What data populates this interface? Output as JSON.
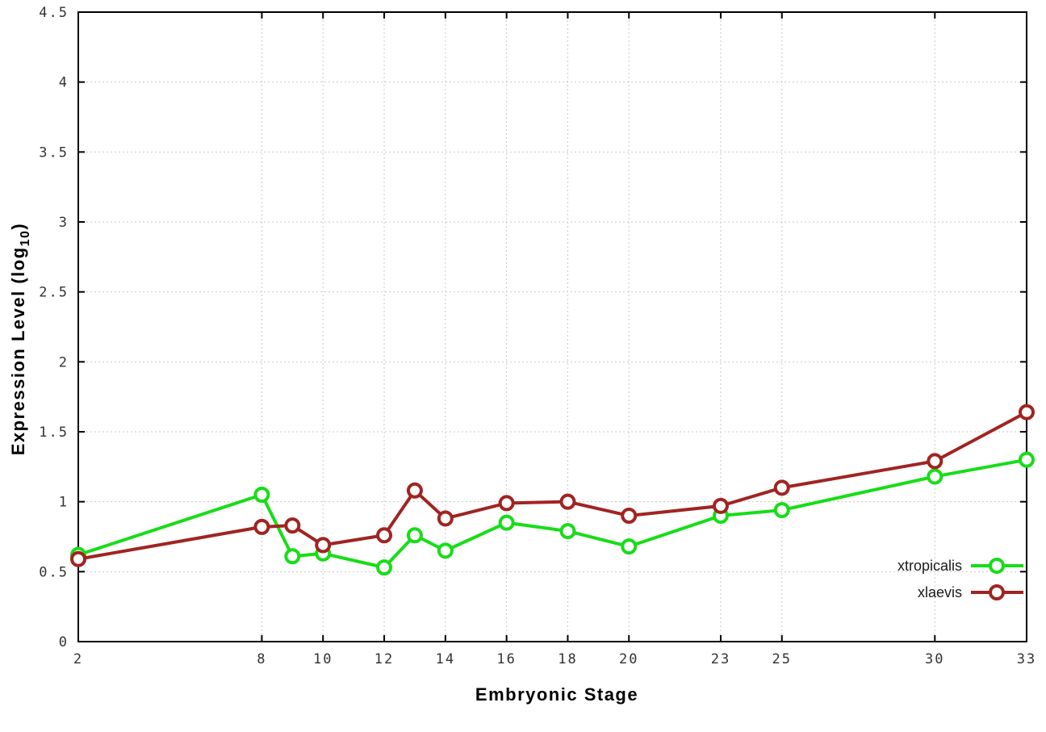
{
  "labels": {
    "xlabel": "Embryonic Stage",
    "ylabel_prefix": "Expression Level (log",
    "ylabel_sub": "10",
    "ylabel_suffix": ")"
  },
  "chart_data": {
    "type": "line",
    "title": "",
    "xlabel": "Embryonic Stage",
    "ylabel": "Expression Level (log10)",
    "x": [
      2,
      8,
      9,
      10,
      12,
      13,
      14,
      16,
      18,
      20,
      23,
      25,
      30,
      33
    ],
    "xticks": [
      2,
      8,
      10,
      12,
      14,
      16,
      18,
      20,
      23,
      25,
      30,
      33
    ],
    "yticks": [
      0,
      0.5,
      1,
      1.5,
      2,
      2.5,
      3,
      3.5,
      4,
      4.5
    ],
    "xlim": [
      2,
      33
    ],
    "ylim": [
      0,
      4.5
    ],
    "grid": true,
    "legend_position": "inside-bottom-right",
    "marker": "open-circle",
    "series": [
      {
        "name": "xtropicalis",
        "color": "#17dd17",
        "values": [
          0.62,
          1.05,
          0.61,
          0.63,
          0.53,
          0.76,
          0.65,
          0.85,
          0.79,
          0.68,
          0.9,
          0.94,
          1.18,
          1.3
        ]
      },
      {
        "name": "xlaevis",
        "color": "#a02421",
        "values": [
          0.59,
          0.82,
          0.83,
          0.69,
          0.76,
          1.08,
          0.88,
          0.99,
          1.0,
          0.9,
          0.97,
          1.1,
          1.29,
          1.64
        ]
      }
    ]
  }
}
